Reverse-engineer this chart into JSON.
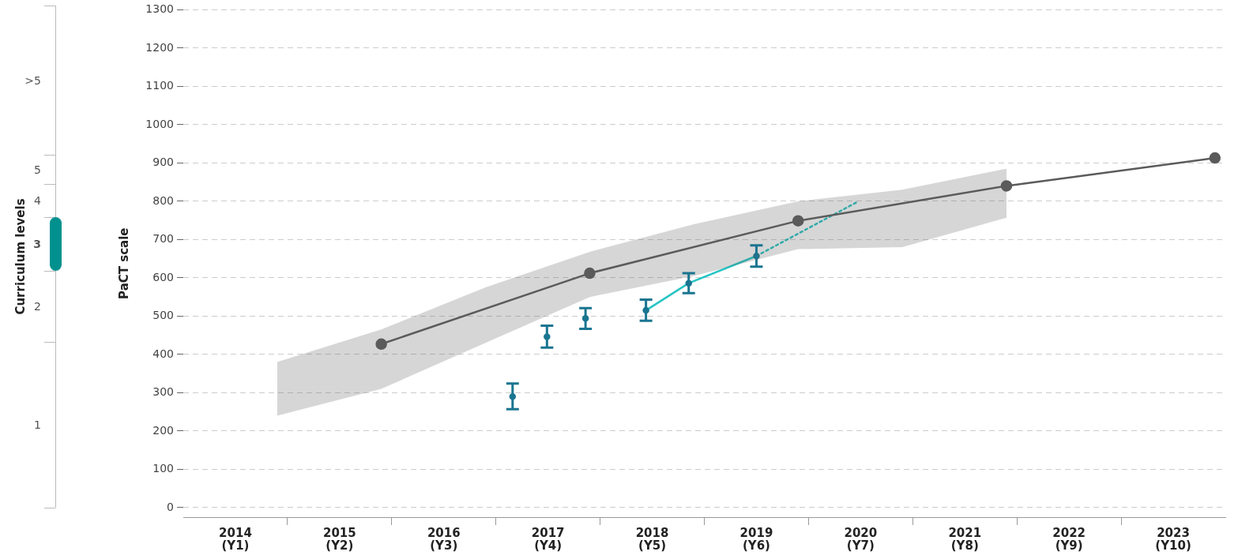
{
  "chart_data": [
    {
      "type": "other",
      "ylabel": "Curriculum levels",
      "categories": [
        ">5",
        "5",
        "4",
        "3",
        "2",
        "1"
      ],
      "colors": [
        null,
        null,
        null,
        "#00918f",
        null,
        null
      ]
    },
    {
      "type": "line",
      "ylabel": "PaCT scale",
      "xlim": [
        2013.5,
        2023.5
      ],
      "ylim": [
        -25,
        1300
      ],
      "grid": "y",
      "xticks": [
        2014,
        {
          "value": 2014.5,
          "label": null
        },
        2015,
        {
          "value": 2015.5,
          "label": null
        },
        2016,
        {
          "value": 2016.5,
          "label": null
        },
        2017,
        {
          "value": 2017.5,
          "label": null
        },
        2018,
        {
          "value": 2018.5,
          "label": null
        },
        2019,
        {
          "value": 2019.5,
          "label": null
        },
        2020,
        {
          "value": 2020.5,
          "label": null
        },
        2021,
        {
          "value": 2021.5,
          "label": null
        },
        2022,
        {
          "value": 2022.5,
          "label": null
        },
        2023
      ],
      "annotations": [
        "(Y1)",
        "(Y2)",
        "(Y3)",
        "(Y4)",
        "(Y5)",
        "(Y6)",
        "(Y7)",
        "(Y8)",
        "(Y9)",
        "(Y10)"
      ],
      "yticks": [
        0,
        100,
        200,
        300,
        400,
        500,
        600,
        700,
        800,
        900,
        1000,
        1100,
        1200,
        1300
      ],
      "series": [
        {
          "type": "line",
          "color": "#5b5b5b",
          "marker": "circle",
          "x": [
            2014.4,
            2015.4,
            2016.4,
            2017.4,
            2018.4,
            2019.4,
            2020.4,
            2021.4,
            2023.4
          ],
          "values": [
            null,
            427,
            null,
            612,
            null,
            749,
            null,
            840,
            913
          ],
          "lower": [
            240,
            310,
            430,
            550,
            605,
            675,
            680,
            757,
            null
          ],
          "upper": [
            380,
            465,
            575,
            668,
            740,
            800,
            830,
            885,
            null
          ]
        },
        {
          "type": "scatter",
          "color": "#1a7590",
          "marker": "circle",
          "x": [
            2016.66,
            2016.99,
            2017.36,
            2017.94,
            2018.35,
            2019.0
          ],
          "values": [
            290,
            446,
            494,
            515,
            586,
            657
          ],
          "errors": [
            [
              257,
              324
            ],
            [
              418,
              475
            ],
            [
              467,
              521
            ],
            [
              488,
              543
            ],
            [
              560,
              612
            ],
            [
              629,
              685
            ]
          ]
        },
        {
          "type": "line",
          "color": "#25c4c4",
          "marker": "none",
          "line_style": "solid",
          "x": [
            2017.94,
            2018.35,
            2019.0
          ],
          "values": [
            515,
            586,
            657
          ]
        },
        {
          "type": "line",
          "color": "#25c4c4",
          "marker": "none",
          "line_style": "dotted",
          "x": [
            2019.0,
            2019.98
          ],
          "values": [
            657,
            800
          ]
        }
      ]
    }
  ]
}
